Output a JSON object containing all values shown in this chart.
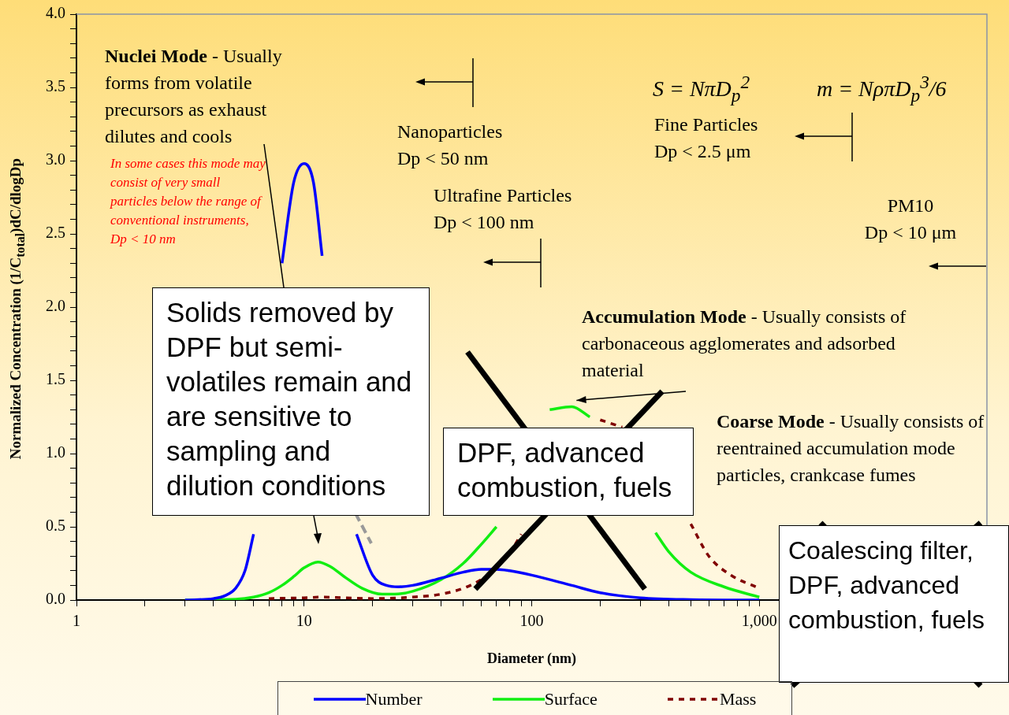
{
  "chart_data": {
    "type": "line",
    "xlabel": "Diameter (nm)",
    "ylabel": "Normalized Concentration  (1/C$_{total}$)dC/dlogDp",
    "log": "x",
    "xlim": [
      1,
      10000
    ],
    "ylim": [
      0,
      4
    ],
    "xticks": [
      1,
      {
        "value": 2,
        "label": null
      },
      {
        "value": 3,
        "label": null
      },
      {
        "value": 4,
        "label": null
      },
      {
        "value": 5,
        "label": null
      },
      {
        "value": 6,
        "label": null
      },
      {
        "value": 7,
        "label": null
      },
      {
        "value": 8,
        "label": null
      },
      {
        "value": 9,
        "label": null
      },
      10,
      {
        "value": 20,
        "label": null
      },
      {
        "value": 30,
        "label": null
      },
      {
        "value": 40,
        "label": null
      },
      {
        "value": 50,
        "label": null
      },
      {
        "value": 60,
        "label": null
      },
      {
        "value": 70,
        "label": null
      },
      {
        "value": 80,
        "label": null
      },
      {
        "value": 90,
        "label": null
      },
      100,
      {
        "value": 200,
        "label": null
      },
      {
        "value": 300,
        "label": null
      },
      {
        "value": 400,
        "label": null
      },
      {
        "value": 500,
        "label": null
      },
      {
        "value": 600,
        "label": null
      },
      {
        "value": 700,
        "label": null
      },
      {
        "value": 800,
        "label": null
      },
      {
        "value": 900,
        "label": null
      },
      {
        "value": 1000,
        "label": "1,000"
      },
      {
        "value": 2000,
        "label": null
      },
      {
        "value": 3000,
        "label": null
      },
      {
        "value": 4000,
        "label": null
      },
      {
        "value": 5000,
        "label": null
      },
      {
        "value": 6000,
        "label": null
      },
      {
        "value": 7000,
        "label": null
      },
      {
        "value": 8000,
        "label": null
      },
      {
        "value": 9000,
        "label": null
      }
    ],
    "yticks": [
      {
        "value": 0,
        "label": "0.0"
      },
      {
        "value": 0.1,
        "label": null
      },
      {
        "value": 0.2,
        "label": null
      },
      {
        "value": 0.3,
        "label": null
      },
      {
        "value": 0.4,
        "label": null
      },
      {
        "value": 0.5,
        "label": "0.5"
      },
      {
        "value": 0.6,
        "label": null
      },
      {
        "value": 0.7,
        "label": null
      },
      {
        "value": 0.8,
        "label": null
      },
      {
        "value": 0.9,
        "label": null
      },
      {
        "value": 1,
        "label": "1.0"
      },
      {
        "value": 1.1,
        "label": null
      },
      {
        "value": 1.2,
        "label": null
      },
      {
        "value": 1.3,
        "label": null
      },
      {
        "value": 1.4,
        "label": null
      },
      {
        "value": 1.5,
        "label": "1.5"
      },
      {
        "value": 1.6,
        "label": null
      },
      {
        "value": 1.7,
        "label": null
      },
      {
        "value": 1.8,
        "label": null
      },
      {
        "value": 1.9,
        "label": null
      },
      {
        "value": 2,
        "label": "2.0"
      },
      {
        "value": 2.1,
        "label": null
      },
      {
        "value": 2.2,
        "label": null
      },
      {
        "value": 2.3,
        "label": null
      },
      {
        "value": 2.4,
        "label": null
      },
      {
        "value": 2.5,
        "label": "2.5"
      },
      {
        "value": 2.6,
        "label": null
      },
      {
        "value": 2.7,
        "label": null
      },
      {
        "value": 2.8,
        "label": null
      },
      {
        "value": 2.9,
        "label": null
      },
      {
        "value": 3,
        "label": "3.0"
      },
      {
        "value": 3.1,
        "label": null
      },
      {
        "value": 3.2,
        "label": null
      },
      {
        "value": 3.3,
        "label": null
      },
      {
        "value": 3.4,
        "label": null
      },
      {
        "value": 3.5,
        "label": "3.5"
      },
      {
        "value": 3.6,
        "label": null
      },
      {
        "value": 3.7,
        "label": null
      },
      {
        "value": 3.8,
        "label": null
      },
      {
        "value": 3.9,
        "label": null
      },
      {
        "value": 4,
        "label": "4.0"
      }
    ],
    "marker": "none",
    "legend": "bottom",
    "series": [
      {
        "name": "Number",
        "color": "#0000ff",
        "line_style": "solid",
        "x": [
          3,
          4,
          4.5,
          5,
          5.5,
          6,
          7,
          8,
          9,
          10,
          11,
          12,
          13,
          15,
          17,
          20,
          23,
          26,
          30,
          40,
          50,
          60,
          70,
          80,
          100,
          150,
          200,
          300,
          500,
          1000
        ],
        "values": [
          0,
          0.01,
          0.03,
          0.08,
          0.2,
          0.45,
          null,
          2.3,
          2.85,
          2.98,
          2.85,
          2.35,
          null,
          null,
          0.45,
          0.17,
          0.1,
          0.09,
          0.1,
          0.15,
          0.19,
          0.21,
          0.21,
          0.2,
          0.17,
          0.1,
          0.05,
          0.015,
          0.003,
          0
        ]
      },
      {
        "name": "Surface",
        "color": "#11ee11",
        "line_style": "solid",
        "x": [
          3,
          5,
          6,
          7,
          8,
          9,
          10,
          11.5,
          13,
          15,
          18,
          22,
          25,
          30,
          40,
          50,
          60,
          70,
          80,
          100,
          120,
          150,
          180,
          200,
          250,
          300,
          350,
          400,
          500,
          700,
          1000
        ],
        "values": [
          0,
          0.005,
          0.02,
          0.05,
          0.1,
          0.16,
          0.22,
          0.26,
          0.23,
          0.16,
          0.08,
          0.04,
          0.04,
          0.06,
          0.14,
          0.25,
          0.38,
          0.5,
          null,
          null,
          1.3,
          1.32,
          1.25,
          null,
          null,
          null,
          0.46,
          0.33,
          0.19,
          0.09,
          0.02
        ]
      },
      {
        "name": "Mass",
        "color": "#800000",
        "line_style": "dashed",
        "x": [
          7,
          10,
          12,
          15,
          20,
          30,
          40,
          50,
          60,
          70,
          80,
          90,
          100,
          130,
          160,
          200,
          250,
          300,
          400,
          500,
          600,
          750,
          1000
        ],
        "values": [
          0.01,
          0.015,
          0.02,
          0.015,
          0.01,
          0.02,
          0.04,
          0.08,
          0.14,
          0.22,
          0.32,
          0.45,
          null,
          null,
          null,
          1.23,
          1.18,
          null,
          null,
          0.52,
          0.3,
          0.17,
          0.08
        ]
      }
    ],
    "annotations": [
      "Nuclei Mode - Usually forms from volatile precursors as exhaust dilutes and cools",
      "In some cases this mode may consist of very small particles below the range of conventional instruments, Dp < 10 nm",
      "Nanoparticles\nDp < 50 nm",
      "Ultrafine Particles\nDp < 100 nm",
      "Fine Particles\nDp < 2.5 μm",
      "PM10\nDp < 10 μm",
      "S = NπD$_{p}$$^{2}$",
      "m = NρπD$_{p}$$^{3}$/6",
      {
        "text": "Accumulation Mode - Usually consists of carbonaceous agglomerates and adsorbed material",
        "x": 150,
        "y": 1.32
      },
      "Coarse Mode - Usually consists of reentrained accumulation mode particles, crankcase fumes",
      "Solids removed by DPF but semi-volatiles remain and are sensitive to sampling and dilution conditions",
      "DPF, advanced combustion, fuels",
      "Coalescing filter, DPF, advanced combustion, fuels"
    ]
  }
}
